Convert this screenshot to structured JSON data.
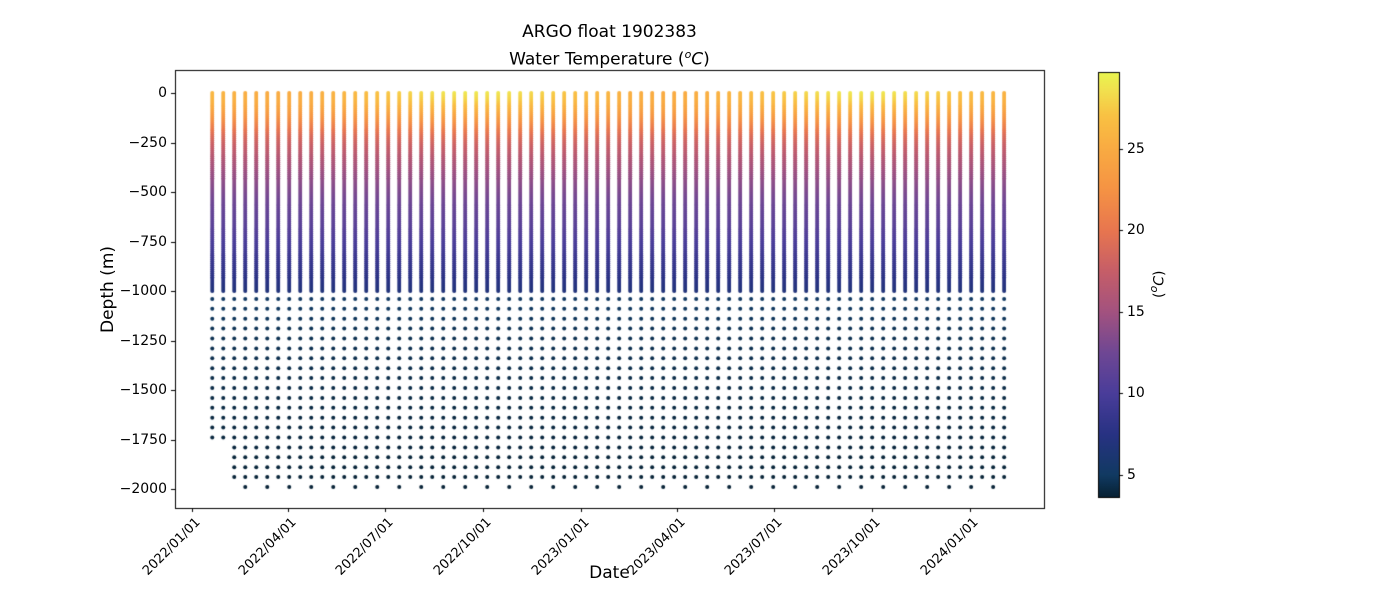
{
  "chart_data": {
    "type": "scatter",
    "title": "ARGO float 1902383",
    "subtitle_parts": [
      "Water Temperature (",
      "o",
      "C",
      ")"
    ],
    "xlabel": "Date",
    "ylabel": "Depth (m)",
    "legend": null,
    "grid": false,
    "x_tick_labels": [
      "2022/01/01",
      "2022/04/01",
      "2022/07/01",
      "2022/10/01",
      "2023/01/01",
      "2023/04/01",
      "2023/07/01",
      "2023/10/01",
      "2024/01/01"
    ],
    "y_tick_values": [
      0,
      -250,
      -500,
      -750,
      -1000,
      -1250,
      -1500,
      -1750,
      -2000
    ],
    "y_tick_labels": [
      "0",
      "−250",
      "−500",
      "−750",
      "−1000",
      "−1250",
      "−1500",
      "−1750",
      "−2000"
    ],
    "xlim": [
      "2021/12/16",
      "2024/03/11"
    ],
    "ylim": [
      -2096,
      116
    ],
    "colorbar": {
      "label_parts": [
        "(",
        "o",
        "C",
        ")"
      ],
      "tick_values": [
        5,
        10,
        15,
        20,
        25
      ],
      "tick_labels": [
        "5",
        "10",
        "15",
        "20",
        "25"
      ],
      "vmin": 3.65,
      "vmax": 29.7,
      "colormap_name": "thermal",
      "stops": [
        [
          3.65,
          "#072133"
        ],
        [
          5.0,
          "#113a62"
        ],
        [
          7.5,
          "#283283"
        ],
        [
          10.0,
          "#4a3d9a"
        ],
        [
          12.5,
          "#6f4794"
        ],
        [
          15.0,
          "#a3527f"
        ],
        [
          17.5,
          "#c65e68"
        ],
        [
          20.0,
          "#e8764f"
        ],
        [
          22.5,
          "#f59344"
        ],
        [
          25.0,
          "#f9ab42"
        ],
        [
          27.0,
          "#f9c143"
        ],
        [
          28.5,
          "#f2df4e"
        ],
        [
          29.7,
          "#e9f64e"
        ]
      ]
    },
    "profiles": {
      "description": "ARGO float temperature profiles: one vertical dot column per cycle, dense sampling 0 to -1000 m, coarse 50 m sampling -1040 to -1940 m, deepest point ~-1990 m on alternate cycles; first two cycles stop near -1740 m.",
      "count": 73,
      "start_date": "2022/01/20",
      "start_day_offset": 19,
      "interval_days": 10.32,
      "upper": {
        "top_depth": 0,
        "bottom_depth": -1000,
        "step_m": 10
      },
      "deep": {
        "start_depth": -1040,
        "step_m": 50,
        "rows": 19,
        "extra_bottom_depth": -1990,
        "extra_on_odd_profiles": true
      },
      "short_profiles": {
        "indices": [
          0,
          1
        ],
        "max_depth": -1750
      },
      "surface_temp": {
        "mean": 27.0,
        "amplitude": 2.0,
        "peak_day_of_year": 265,
        "min": 25.0,
        "max": 29.0
      },
      "anchor_surface_temp": 28.6,
      "seasonal_decay_m": 110,
      "marker_radius_px": 2,
      "depth_temp_anchors": [
        [
          0,
          28.6
        ],
        [
          -40,
          27.6
        ],
        [
          -80,
          26.0
        ],
        [
          -120,
          24.0
        ],
        [
          -170,
          21.5
        ],
        [
          -220,
          19.3
        ],
        [
          -270,
          17.8
        ],
        [
          -330,
          16.3
        ],
        [
          -400,
          14.8
        ],
        [
          -500,
          13.2
        ],
        [
          -600,
          11.8
        ],
        [
          -700,
          10.8
        ],
        [
          -800,
          9.4
        ],
        [
          -900,
          8.2
        ],
        [
          -1000,
          6.9
        ],
        [
          -1040,
          5.1
        ],
        [
          -1200,
          4.6
        ],
        [
          -1500,
          4.2
        ],
        [
          -2000,
          3.75
        ]
      ]
    }
  }
}
